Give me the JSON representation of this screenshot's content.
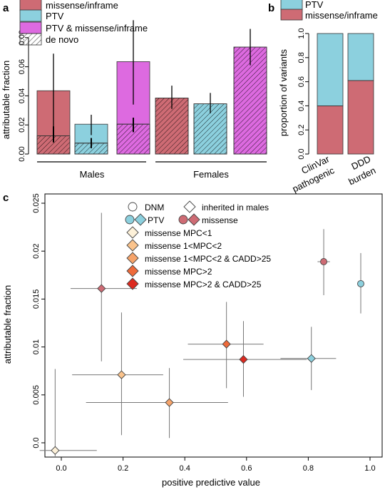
{
  "chart_data": [
    {
      "panel": "a",
      "type": "bar",
      "ylabel": "attributable fraction",
      "ylim": [
        0,
        0.1
      ],
      "yticks": [
        "0.00",
        "0.02",
        "0.04",
        "0.06",
        "0.08"
      ],
      "legend": [
        "missense/inframe",
        "PTV",
        "PTV & missense/inframe",
        "de novo"
      ],
      "colors": {
        "missense": "#ce6b74",
        "ptv": "#8cd0de",
        "both": "#dd6ae0"
      },
      "groups": [
        "Males",
        "Females"
      ],
      "bars": [
        {
          "group": "Males",
          "series": "missense/inframe",
          "value": 0.0435,
          "de_novo": 0.0125,
          "ci": [
            0.008,
            0.069
          ],
          "ci_de_novo": [
            0.008,
            0.019
          ]
        },
        {
          "group": "Males",
          "series": "PTV",
          "value": 0.0205,
          "de_novo": 0.0075,
          "ci": [
            0.013,
            0.027
          ],
          "ci_de_novo": [
            0.004,
            0.011
          ]
        },
        {
          "group": "Males",
          "series": "PTV & missense/inframe",
          "value": 0.0635,
          "de_novo": 0.0205,
          "ci": [
            0.034,
            0.092
          ],
          "ci_de_novo": [
            0.015,
            0.025
          ]
        },
        {
          "group": "Females",
          "series": "missense/inframe",
          "value": 0.0385,
          "de_novo": 0.0385,
          "ci": [
            0.031,
            0.047
          ]
        },
        {
          "group": "Females",
          "series": "PTV",
          "value": 0.0345,
          "de_novo": 0.0345,
          "ci": [
            0.028,
            0.042
          ]
        },
        {
          "group": "Females",
          "series": "PTV & missense/inframe",
          "value": 0.0735,
          "de_novo": 0.0735,
          "ci": [
            0.061,
            0.086
          ]
        }
      ]
    },
    {
      "panel": "b",
      "type": "bar",
      "stacked": true,
      "ylabel": "proportion of variants",
      "ylim": [
        0,
        1
      ],
      "yticks": [
        "0.0",
        "0.2",
        "0.4",
        "0.6",
        "0.8",
        "1.0"
      ],
      "legend": [
        "PTV",
        "missense/inframe"
      ],
      "categories": [
        [
          "ClinVar",
          "pathogenic"
        ],
        [
          "DDD",
          "burden"
        ]
      ],
      "series": [
        {
          "name": "missense/inframe",
          "values": [
            0.4,
            0.61
          ]
        },
        {
          "name": "PTV",
          "values": [
            0.6,
            0.39
          ]
        }
      ]
    },
    {
      "panel": "c",
      "type": "scatter",
      "xlabel": "positive predictive value",
      "ylabel": "attributable fraction",
      "xlim": [
        -0.07,
        1.0
      ],
      "ylim": [
        -0.0012,
        0.026
      ],
      "xticks": [
        "0.0",
        "0.2",
        "0.4",
        "0.6",
        "0.8",
        "1.0"
      ],
      "yticks": [
        "0.0",
        "0.005",
        "0.01",
        "0.015",
        "0.02",
        "0.025"
      ],
      "legend": {
        "row1": [
          "DNM",
          "inherited in males"
        ],
        "row2": [
          "PTV",
          "missense"
        ],
        "categories": [
          "missense MPC<1",
          "missense 1<MPC<2",
          "missense 1<MPC<2 & CADD>25",
          "missense MPC>2",
          "missense MPC>2 & CADD>25"
        ],
        "category_colors": [
          "#fdf1d9",
          "#fac38c",
          "#f6a46b",
          "#ee6a3a",
          "#dc2a20"
        ]
      },
      "points": [
        {
          "label": "PTV",
          "shape": "circle",
          "color": "#8cd0de",
          "x": 0.97,
          "y": 0.0166,
          "ci_y": [
            0.0135,
            0.0198
          ]
        },
        {
          "label": "missense",
          "shape": "circle",
          "color": "#ce6b74",
          "x": 0.85,
          "y": 0.0189,
          "ci_x": [
            0.83,
            0.87
          ],
          "ci_y": [
            0.0154,
            0.0223
          ]
        },
        {
          "label": "PTV",
          "shape": "diamond",
          "color": "#8cd0de",
          "x": 0.81,
          "y": 0.0088,
          "ci_x": [
            0.71,
            0.89
          ],
          "ci_y": [
            0.0055,
            0.0121
          ]
        },
        {
          "label": "missense",
          "shape": "diamond",
          "color": "#ce6b74",
          "x": 0.13,
          "y": 0.0161,
          "ci_x": [
            0.03,
            0.245
          ],
          "ci_y": [
            0.0085,
            0.024
          ]
        },
        {
          "label": "missense MPC<1",
          "shape": "diamond",
          "color": "#fdf1d9",
          "x": -0.02,
          "y": -0.0008,
          "ci_x": [
            -0.07,
            0.115
          ],
          "ci_y": [
            -0.004,
            0.0077
          ]
        },
        {
          "label": "missense 1<MPC<2",
          "shape": "diamond",
          "color": "#fac38c",
          "x": 0.195,
          "y": 0.0071,
          "ci_x": [
            0.035,
            0.33
          ],
          "ci_y": [
            0.0008,
            0.0136
          ]
        },
        {
          "label": "missense 1<MPC<2 & CADD>25",
          "shape": "diamond",
          "color": "#f6a46b",
          "x": 0.35,
          "y": 0.0042,
          "ci_x": [
            0.08,
            0.54
          ],
          "ci_y": [
            0.0005,
            0.0078
          ]
        },
        {
          "label": "missense MPC>2",
          "shape": "diamond",
          "color": "#ee6a3a",
          "x": 0.535,
          "y": 0.0103,
          "ci_x": [
            0.41,
            0.655
          ],
          "ci_y": [
            0.0057,
            0.0147
          ]
        },
        {
          "label": "missense MPC>2 & CADD>25",
          "shape": "diamond",
          "color": "#dc2a20",
          "x": 0.59,
          "y": 0.0087,
          "ci_x": [
            0.395,
            0.795
          ],
          "ci_y": [
            0.0048,
            0.0127
          ]
        }
      ]
    }
  ],
  "panels": {
    "a": "a",
    "b": "b",
    "c": "c"
  }
}
